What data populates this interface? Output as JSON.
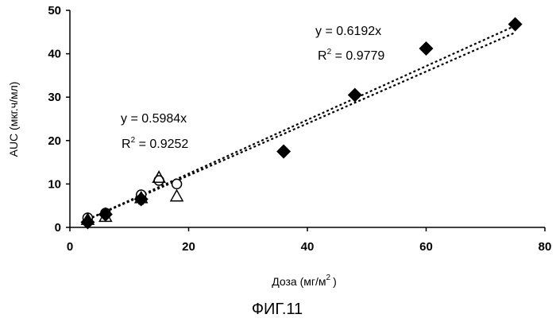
{
  "chart_data": {
    "type": "scatter",
    "xlabel": "Доза (мг/м",
    "xlabel_sup": "2",
    "xlabel_close": ")",
    "ylabel": "AUC (мкг.ч/мл)",
    "xlim": [
      0,
      80
    ],
    "ylim": [
      0,
      50
    ],
    "x_ticks": [
      "0",
      "20",
      "40",
      "60",
      "80"
    ],
    "y_ticks": [
      "0",
      "10",
      "20",
      "30",
      "40",
      "50"
    ],
    "grid": false,
    "series": [
      {
        "marker": "diamond-filled",
        "points": [
          [
            3,
            1.2
          ],
          [
            6,
            3.0
          ],
          [
            12,
            6.5
          ],
          [
            36,
            17.5
          ],
          [
            48,
            30.5
          ],
          [
            60,
            41.2
          ],
          [
            75,
            46.8
          ]
        ]
      },
      {
        "marker": "circle-open",
        "points": [
          [
            3,
            2.2
          ],
          [
            6,
            3.3
          ],
          [
            12,
            7.5
          ],
          [
            15,
            10.8
          ],
          [
            18,
            10.0
          ]
        ]
      },
      {
        "marker": "triangle-open",
        "points": [
          [
            3,
            1.8
          ],
          [
            6,
            2.5
          ],
          [
            12,
            6.8
          ],
          [
            15,
            11.5
          ],
          [
            18,
            7.2
          ]
        ]
      },
      {
        "marker": "star",
        "points": [
          [
            3,
            1.5
          ],
          [
            6,
            2.8
          ],
          [
            12,
            6.2
          ]
        ]
      }
    ],
    "trendlines": [
      {
        "slope": 0.6192,
        "x_range": [
          3,
          75
        ],
        "equation": "y = 0.6192x",
        "r2_prefix": "R",
        "r2_sup": "2",
        "r2_value": " = 0.9779"
      },
      {
        "slope": 0.5984,
        "x_range": [
          3,
          75
        ],
        "equation": "y = 0.5984x",
        "r2_prefix": "R",
        "r2_sup": "2",
        "r2_value": " = 0.9252"
      }
    ],
    "caption": "ФИГ.11"
  }
}
